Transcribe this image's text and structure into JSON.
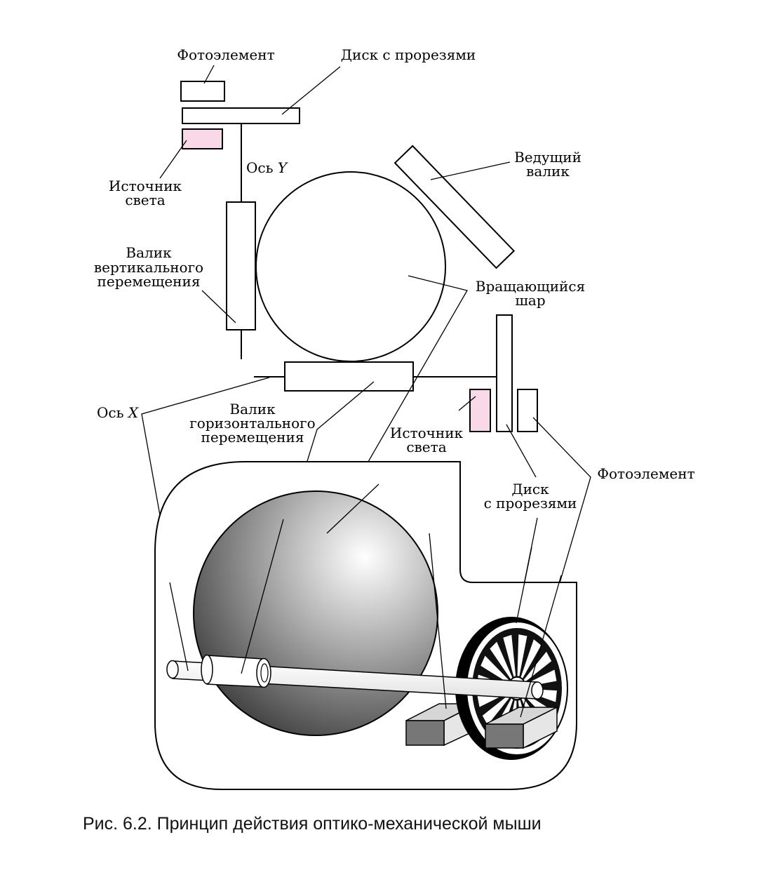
{
  "labels": {
    "photo_top": "Фотоэлемент",
    "disk_top": "Диск с прорезями",
    "light_top_1": "Источник",
    "light_top_2": "света",
    "axis_y_prefix": "Ось ",
    "axis_y_letter": "Y",
    "drive_1": "Ведущий",
    "drive_2": "валик",
    "vroller_1": "Валик",
    "vroller_2": "вертикального",
    "vroller_3": "перемещения",
    "ball_1": "Вращающийся",
    "ball_2": "шар",
    "axis_x_prefix": "Ось ",
    "axis_x_letter": "X",
    "hroller_1": "Валик",
    "hroller_2": "горизонтального",
    "hroller_3": "перемещения",
    "light_bot_1": "Источник",
    "light_bot_2": "света",
    "photo_bot": "Фотоэлемент",
    "disk_bot_1": "Диск",
    "disk_bot_2": "с прорезями"
  },
  "caption": "Рис. 6.2. Принцип действия оптико-механической мыши",
  "colors": {
    "light_source": "#f9d9e8",
    "ball_highlight": "#ffffff",
    "ball_shadow": "#3a3a3a",
    "block_face": "#777777",
    "block_top": "#d6d6d6"
  }
}
